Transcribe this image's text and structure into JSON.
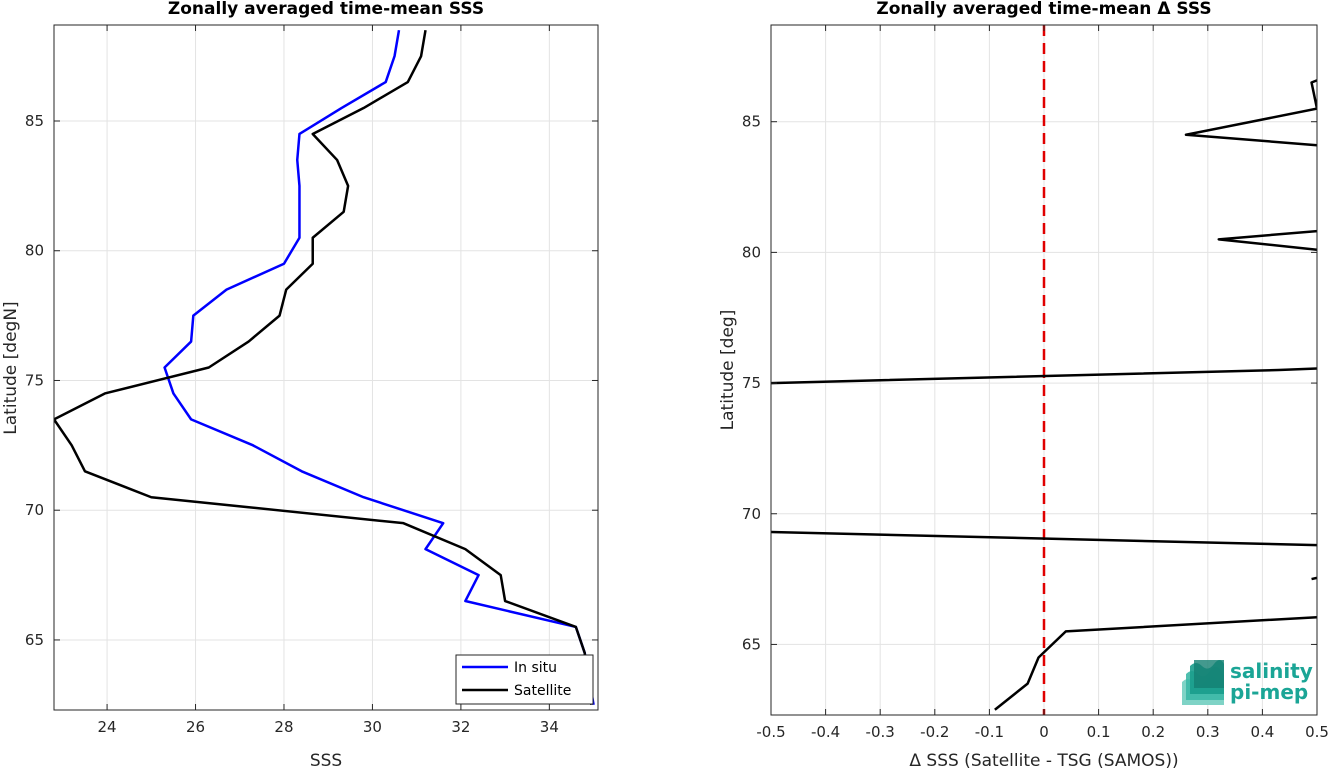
{
  "chart_data": [
    {
      "type": "line",
      "title": "Zonally averaged time-mean SSS",
      "xlabel": "SSS",
      "ylabel": "Latitude [degN]",
      "xlim": [
        22.8,
        35.1
      ],
      "ylim": [
        62.3,
        88.7
      ],
      "xticks": [
        24,
        26,
        28,
        30,
        32,
        34
      ],
      "yticks": [
        65,
        70,
        75,
        80,
        85
      ],
      "grid": true,
      "legend": "bottom-right",
      "series": [
        {
          "name": "In situ",
          "color": "#0000ff",
          "points": [
            [
              30.6,
              88.5
            ],
            [
              30.5,
              87.5
            ],
            [
              30.3,
              86.5
            ],
            [
              29.3,
              85.5
            ],
            [
              28.35,
              84.5
            ],
            [
              28.3,
              83.5
            ],
            [
              28.35,
              82.5
            ],
            [
              28.35,
              81.5
            ],
            [
              28.35,
              80.5
            ],
            [
              28.0,
              79.5
            ],
            [
              26.7,
              78.5
            ],
            [
              25.95,
              77.5
            ],
            [
              25.9,
              76.5
            ],
            [
              25.3,
              75.5
            ],
            [
              25.5,
              74.5
            ],
            [
              25.9,
              73.5
            ],
            [
              27.3,
              72.5
            ],
            [
              28.4,
              71.5
            ],
            [
              29.8,
              70.5
            ],
            [
              31.6,
              69.5
            ],
            [
              31.2,
              68.5
            ],
            [
              32.4,
              67.5
            ],
            [
              32.1,
              66.5
            ],
            [
              34.6,
              65.5
            ],
            [
              34.8,
              64.5
            ],
            [
              34.9,
              63.5
            ],
            [
              35.0,
              62.5
            ]
          ]
        },
        {
          "name": "Satellite",
          "color": "#000000",
          "points": [
            [
              31.2,
              88.5
            ],
            [
              31.1,
              87.5
            ],
            [
              30.8,
              86.5
            ],
            [
              29.8,
              85.5
            ],
            [
              28.65,
              84.5
            ],
            [
              29.2,
              83.5
            ],
            [
              29.45,
              82.5
            ],
            [
              29.35,
              81.5
            ],
            [
              28.65,
              80.5
            ],
            [
              28.65,
              79.5
            ],
            [
              28.05,
              78.5
            ],
            [
              27.9,
              77.5
            ],
            [
              27.2,
              76.5
            ],
            [
              26.3,
              75.5
            ],
            [
              23.95,
              74.5
            ],
            [
              22.8,
              73.5
            ],
            [
              23.2,
              72.5
            ],
            [
              23.5,
              71.5
            ],
            [
              25.0,
              70.5
            ],
            [
              30.7,
              69.5
            ],
            [
              32.1,
              68.5
            ],
            [
              32.9,
              67.5
            ],
            [
              33.0,
              66.5
            ],
            [
              34.6,
              65.5
            ],
            [
              34.8,
              64.5
            ],
            [
              34.85,
              63.5
            ],
            [
              34.95,
              62.5
            ]
          ]
        }
      ]
    },
    {
      "type": "line",
      "title": "Zonally averaged time-mean Δ SSS",
      "xlabel": "Δ SSS (Satellite - TSG (SAMOS))",
      "ylabel": "Latitude [deg]",
      "xlim": [
        -0.5,
        0.5
      ],
      "ylim": [
        62.3,
        88.7
      ],
      "xticks": [
        -0.5,
        -0.4,
        -0.3,
        -0.2,
        -0.1,
        0,
        0.1,
        0.2,
        0.3,
        0.4,
        0.5
      ],
      "yticks": [
        65,
        70,
        75,
        80,
        85
      ],
      "grid": true,
      "reference_line": {
        "x": 0,
        "color": "#e00000",
        "style": "dashed"
      },
      "series": [
        {
          "color": "#000000",
          "segments": [
            [
              [
                0.55,
                87.0
              ],
              [
                0.49,
                86.5
              ],
              [
                0.5,
                85.5
              ],
              [
                0.26,
                84.5
              ],
              [
                0.5,
                84.1
              ]
            ],
            [
              [
                0.55,
                80.9
              ],
              [
                0.32,
                80.5
              ],
              [
                0.5,
                80.1
              ]
            ],
            [
              [
                0.55,
                75.6
              ],
              [
                0.43,
                75.5
              ],
              [
                -0.5,
                75.0
              ]
            ],
            [
              [
                -0.5,
                69.3
              ],
              [
                0.5,
                68.8
              ]
            ],
            [
              [
                0.5,
                67.55
              ],
              [
                0.49,
                67.5
              ]
            ],
            [
              [
                0.55,
                66.1
              ],
              [
                0.04,
                65.5
              ],
              [
                -0.01,
                64.5
              ],
              [
                -0.03,
                63.5
              ],
              [
                -0.09,
                62.5
              ]
            ]
          ]
        }
      ]
    }
  ],
  "logo": {
    "line1": "salinity",
    "line2": "pi-mep",
    "color": "#1ba596"
  }
}
